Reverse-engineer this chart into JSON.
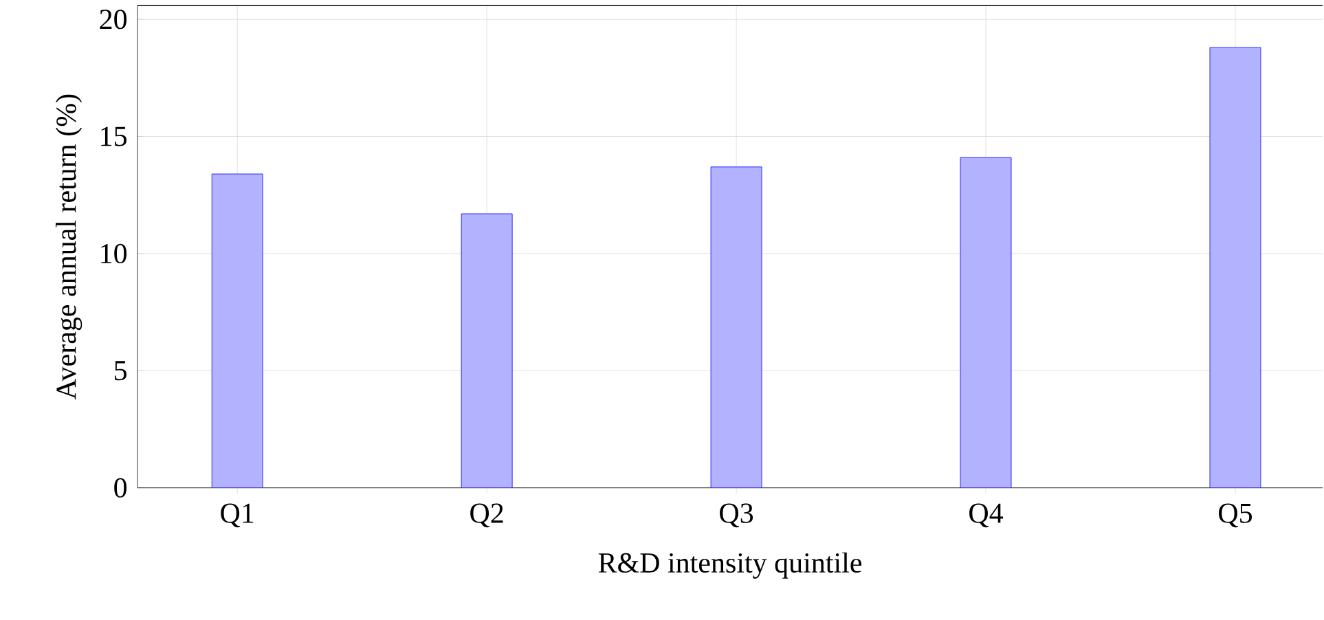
{
  "chart_data": {
    "type": "bar",
    "xlabel": "R&D intensity quintile",
    "ylabel": "Average annual return (%)",
    "categories": [
      "Q1",
      "Q2",
      "Q3",
      "Q4",
      "Q5"
    ],
    "values": [
      13.4,
      11.7,
      13.7,
      14.1,
      18.8
    ],
    "color": "#0000ff",
    "ylim": [
      0,
      20.6
    ],
    "yticks": [
      0,
      5,
      10,
      15,
      20
    ],
    "grid": true
  }
}
